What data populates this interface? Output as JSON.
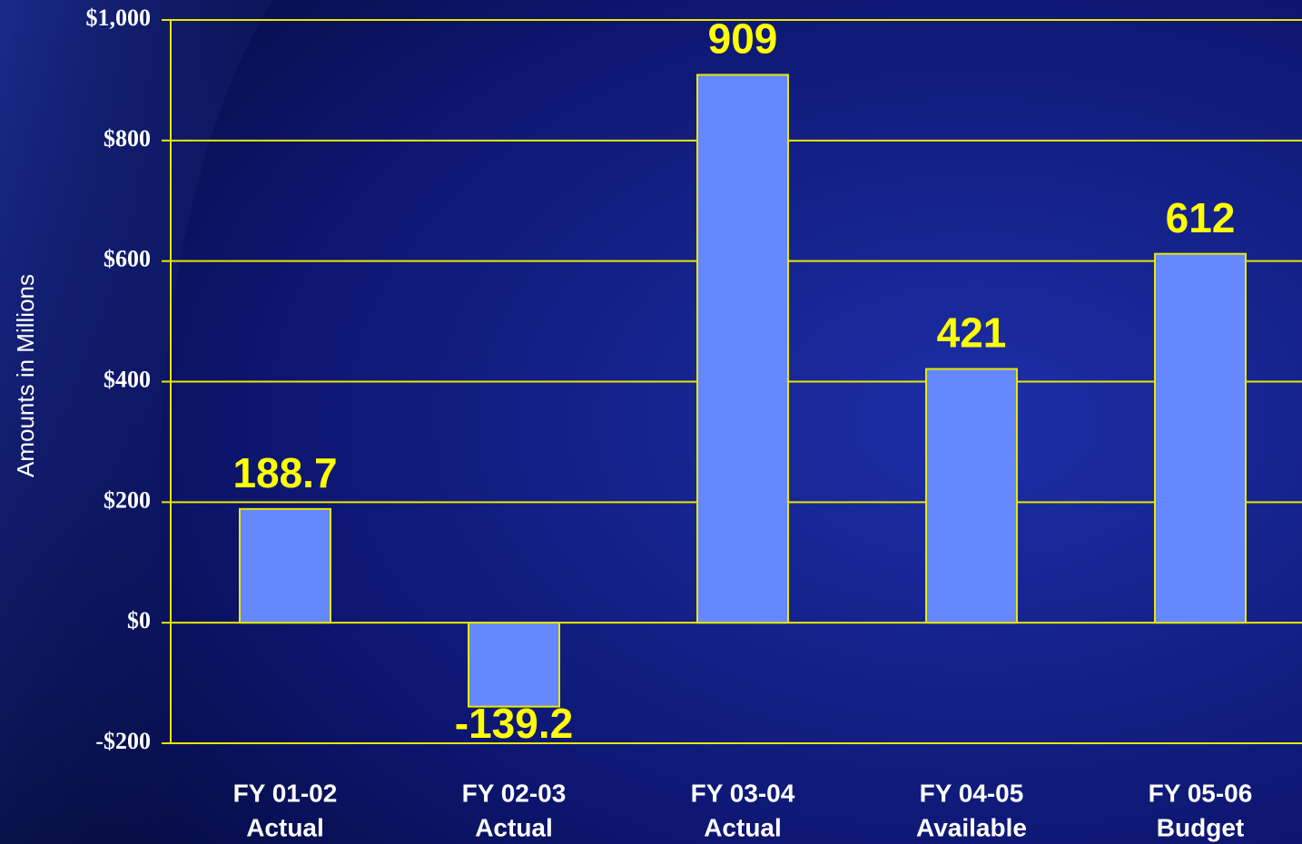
{
  "chart_data": {
    "type": "bar",
    "y_axis_label": "Amounts in Millions",
    "categories": [
      [
        "FY 01-02",
        "Actual"
      ],
      [
        "FY 02-03",
        "Actual"
      ],
      [
        "FY 03-04",
        "Actual"
      ],
      [
        "FY 04-05",
        "Available"
      ],
      [
        "FY 05-06",
        "Budget"
      ]
    ],
    "values": [
      188.7,
      -139.2,
      909,
      421,
      612
    ],
    "color": "#6688ff",
    "ylim": [
      -200,
      1000
    ],
    "yticks": [
      {
        "value": -200,
        "label": "-$200"
      },
      {
        "value": 0,
        "label": "$0"
      },
      {
        "value": 200,
        "label": "$200"
      },
      {
        "value": 400,
        "label": "$400"
      },
      {
        "value": 600,
        "label": "$600"
      },
      {
        "value": 800,
        "label": "$800"
      },
      {
        "value": 1000,
        "label": "$1,000"
      }
    ],
    "grid": true
  }
}
